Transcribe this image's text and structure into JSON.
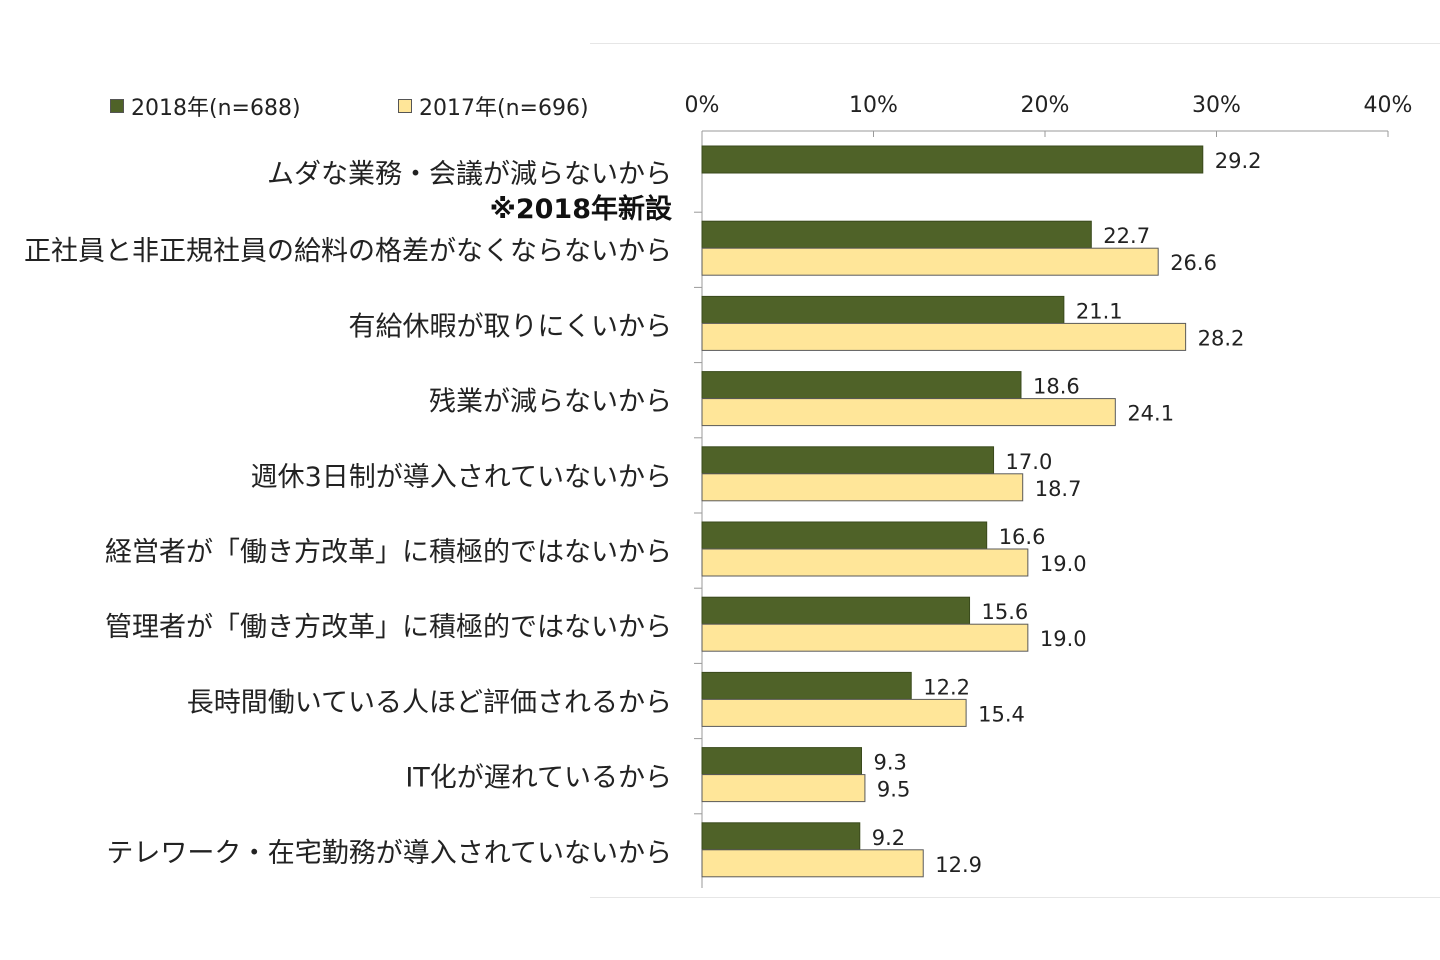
{
  "chart_data": {
    "type": "bar",
    "orientation": "horizontal",
    "categories": [
      "ムダな業務・会議が減らないから",
      "正社員と非正規社員の給料の格差がなくならないから",
      "有給休暇が取りにくいから",
      "残業が減らないから",
      "週休3日制が導入されていないから",
      "経営者が「働き方改革」に積極的ではないから",
      "管理者が「働き方改革」に積極的ではないから",
      "長時間働いている人ほど評価されるから",
      "IT化が遅れているから",
      "テレワーク・在宅勤務が導入されていないから"
    ],
    "category_notes": [
      "※2018年新設",
      "",
      "",
      "",
      "",
      "",
      "",
      "",
      "",
      ""
    ],
    "series": [
      {
        "name": "2018年(n=688)",
        "color": "#4f6228",
        "values": [
          29.2,
          22.7,
          21.1,
          18.6,
          17.0,
          16.6,
          15.6,
          12.2,
          9.3,
          9.2
        ],
        "labels": [
          "29.2",
          "22.7",
          "21.1",
          "18.6",
          "17.0",
          "16.6",
          "15.6",
          "12.2",
          "9.3",
          "9.2"
        ]
      },
      {
        "name": "2017年(n=696)",
        "color": "#ffe699",
        "values": [
          null,
          26.6,
          28.2,
          24.1,
          18.7,
          19.0,
          19.0,
          15.4,
          9.5,
          12.9
        ],
        "labels": [
          "",
          "26.6",
          "28.2",
          "24.1",
          "18.7",
          "19.0",
          "19.0",
          "15.4",
          "9.5",
          "12.9"
        ]
      }
    ],
    "xlim": [
      0,
      40
    ],
    "xticks": [
      0,
      10,
      20,
      30,
      40
    ],
    "xtick_labels": [
      "0%",
      "10%",
      "20%",
      "30%",
      "40%"
    ],
    "axis_position": "top",
    "legend_position": "top-left",
    "grid": false
  }
}
